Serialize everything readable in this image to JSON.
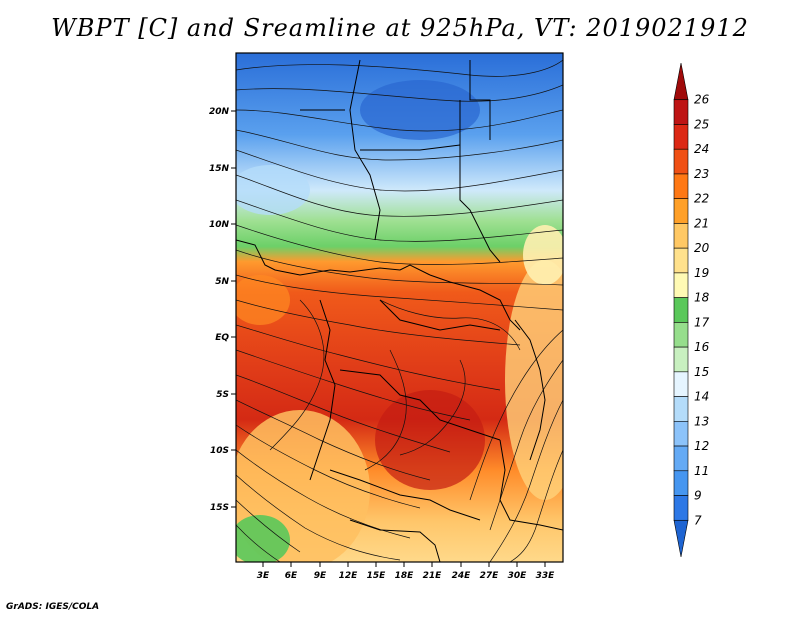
{
  "title": "WBPT [C] and Sreamline at 925hPa, VT: 2019021912",
  "credit": "GrADS: IGES/COLA",
  "map": {
    "lat_ticks": [
      "20N",
      "15N",
      "10N",
      "5N",
      "EQ",
      "5S",
      "10S",
      "15S"
    ],
    "lon_ticks": [
      "3E",
      "6E",
      "9E",
      "12E",
      "15E",
      "18E",
      "21E",
      "24E",
      "27E",
      "30E",
      "33E"
    ]
  },
  "colorbar": {
    "labels": [
      "7",
      "9",
      "11",
      "12",
      "13",
      "14",
      "15",
      "16",
      "17",
      "18",
      "19",
      "20",
      "21",
      "22",
      "23",
      "24",
      "25",
      "26"
    ],
    "colors": [
      "#1e64d2",
      "#2d78e6",
      "#4696f0",
      "#64aaf5",
      "#8cc3fa",
      "#b4dcfa",
      "#e6f5ff",
      "#c8f0c0",
      "#96de8c",
      "#5ac85a",
      "#fffab4",
      "#ffe18c",
      "#ffc864",
      "#ffa028",
      "#ff7814",
      "#f05014",
      "#dc2814",
      "#be1414",
      "#a00a0a"
    ]
  }
}
